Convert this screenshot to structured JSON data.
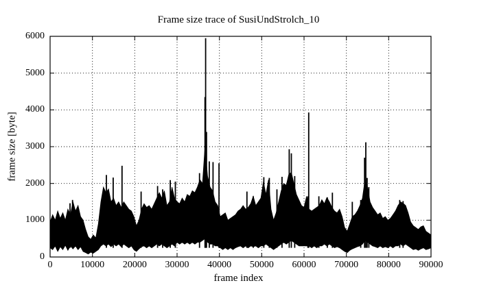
{
  "window": {
    "background": "#ffffff",
    "foreground": "#000000"
  },
  "chart_data": {
    "type": "line",
    "title": "Frame size trace of SusiUndStrolch_10",
    "xlabel": "frame index",
    "ylabel": "frame size [byte]",
    "series_name": "frame size trace",
    "line_color": "#000000",
    "grid": "dotted",
    "legend": "none",
    "xlim": [
      0,
      90000
    ],
    "ylim": [
      0,
      6000
    ],
    "xticks": [
      0,
      10000,
      20000,
      30000,
      40000,
      50000,
      60000,
      70000,
      80000,
      90000
    ],
    "yticks": [
      0,
      1000,
      2000,
      3000,
      4000,
      5000,
      6000
    ],
    "band_note": "dense noisy trace; sampled envelope [frame, min, max] in bytes",
    "band": [
      [
        0,
        250,
        950
      ],
      [
        600,
        200,
        1150
      ],
      [
        1200,
        300,
        1000
      ],
      [
        1800,
        150,
        1250
      ],
      [
        2400,
        280,
        1050
      ],
      [
        3000,
        200,
        1200
      ],
      [
        3600,
        320,
        1000
      ],
      [
        4200,
        180,
        1300
      ],
      [
        4800,
        300,
        1150
      ],
      [
        5400,
        220,
        1500
      ],
      [
        6000,
        300,
        1250
      ],
      [
        6600,
        200,
        1400
      ],
      [
        7200,
        280,
        1100
      ],
      [
        7800,
        150,
        1000
      ],
      [
        8400,
        120,
        750
      ],
      [
        9000,
        80,
        550
      ],
      [
        9600,
        130,
        480
      ],
      [
        10200,
        100,
        600
      ],
      [
        10800,
        150,
        520
      ],
      [
        11400,
        200,
        900
      ],
      [
        12000,
        300,
        1500
      ],
      [
        12600,
        350,
        1900
      ],
      [
        13200,
        300,
        1750
      ],
      [
        13800,
        350,
        1850
      ],
      [
        14400,
        280,
        1500
      ],
      [
        15000,
        350,
        1600
      ],
      [
        15600,
        300,
        1400
      ],
      [
        16200,
        350,
        1500
      ],
      [
        16800,
        280,
        1350
      ],
      [
        17400,
        350,
        1500
      ],
      [
        18000,
        300,
        1400
      ],
      [
        18600,
        250,
        1300
      ],
      [
        19200,
        300,
        1250
      ],
      [
        19800,
        200,
        1100
      ],
      [
        20400,
        150,
        850
      ],
      [
        21000,
        220,
        1000
      ],
      [
        21600,
        280,
        1300
      ],
      [
        22200,
        300,
        1450
      ],
      [
        22800,
        250,
        1350
      ],
      [
        23400,
        300,
        1400
      ],
      [
        24000,
        250,
        1300
      ],
      [
        24600,
        300,
        1450
      ],
      [
        25200,
        350,
        1600
      ],
      [
        25800,
        300,
        1750
      ],
      [
        26400,
        350,
        1600
      ],
      [
        27000,
        300,
        1800
      ],
      [
        27600,
        250,
        1400
      ],
      [
        28200,
        300,
        1500
      ],
      [
        28800,
        350,
        1900
      ],
      [
        29400,
        300,
        1600
      ],
      [
        30000,
        400,
        1500
      ],
      [
        30600,
        350,
        1450
      ],
      [
        31200,
        400,
        1600
      ],
      [
        31800,
        350,
        1500
      ],
      [
        32400,
        400,
        1700
      ],
      [
        33000,
        350,
        1650
      ],
      [
        33600,
        400,
        1800
      ],
      [
        34200,
        350,
        1750
      ],
      [
        34800,
        400,
        1900
      ],
      [
        35400,
        400,
        2100
      ],
      [
        36000,
        450,
        2000
      ],
      [
        36600,
        500,
        3000
      ],
      [
        37200,
        400,
        2200
      ],
      [
        37800,
        350,
        1900
      ],
      [
        38400,
        350,
        1800
      ],
      [
        39000,
        300,
        1500
      ],
      [
        39600,
        300,
        1400
      ],
      [
        40200,
        250,
        1100
      ],
      [
        40800,
        200,
        1150
      ],
      [
        41400,
        250,
        1200
      ],
      [
        42000,
        200,
        1000
      ],
      [
        42600,
        250,
        1050
      ],
      [
        43200,
        200,
        1100
      ],
      [
        43800,
        250,
        1150
      ],
      [
        44400,
        280,
        1250
      ],
      [
        45000,
        300,
        1300
      ],
      [
        45600,
        250,
        1400
      ],
      [
        46200,
        300,
        1300
      ],
      [
        46800,
        250,
        1350
      ],
      [
        47400,
        300,
        1450
      ],
      [
        48000,
        280,
        1650
      ],
      [
        48600,
        300,
        1400
      ],
      [
        49200,
        250,
        1500
      ],
      [
        49800,
        300,
        1600
      ],
      [
        50400,
        300,
        2050
      ],
      [
        51000,
        350,
        1700
      ],
      [
        51600,
        300,
        2100
      ],
      [
        52200,
        250,
        1300
      ],
      [
        52800,
        200,
        1000
      ],
      [
        53400,
        250,
        1200
      ],
      [
        54000,
        300,
        1500
      ],
      [
        54600,
        350,
        1800
      ],
      [
        55200,
        400,
        2000
      ],
      [
        55800,
        350,
        1950
      ],
      [
        56400,
        400,
        2250
      ],
      [
        57000,
        450,
        2300
      ],
      [
        57600,
        400,
        2000
      ],
      [
        58200,
        350,
        1700
      ],
      [
        58800,
        300,
        1550
      ],
      [
        59400,
        300,
        1400
      ],
      [
        60000,
        300,
        1350
      ],
      [
        60600,
        300,
        1650
      ],
      [
        61200,
        300,
        1300
      ],
      [
        61800,
        250,
        1250
      ],
      [
        62400,
        300,
        1300
      ],
      [
        63000,
        250,
        1350
      ],
      [
        63600,
        300,
        1400
      ],
      [
        64200,
        300,
        1560
      ],
      [
        64800,
        350,
        1450
      ],
      [
        65400,
        300,
        1620
      ],
      [
        66000,
        350,
        1500
      ],
      [
        66600,
        300,
        1350
      ],
      [
        67200,
        250,
        1250
      ],
      [
        67800,
        280,
        1200
      ],
      [
        68400,
        250,
        1300
      ],
      [
        69000,
        200,
        1100
      ],
      [
        69600,
        150,
        800
      ],
      [
        70200,
        120,
        700
      ],
      [
        70800,
        180,
        900
      ],
      [
        71400,
        220,
        1100
      ],
      [
        72000,
        250,
        1150
      ],
      [
        72600,
        280,
        1250
      ],
      [
        73200,
        300,
        1400
      ],
      [
        73800,
        350,
        1600
      ],
      [
        74400,
        450,
        2100
      ],
      [
        75000,
        400,
        1900
      ],
      [
        75600,
        350,
        1500
      ],
      [
        76200,
        300,
        1350
      ],
      [
        76800,
        280,
        1250
      ],
      [
        77400,
        250,
        1150
      ],
      [
        78000,
        300,
        1200
      ],
      [
        78600,
        250,
        1050
      ],
      [
        79200,
        280,
        1100
      ],
      [
        79800,
        250,
        1000
      ],
      [
        80400,
        300,
        1050
      ],
      [
        81000,
        250,
        1150
      ],
      [
        81600,
        300,
        1250
      ],
      [
        82200,
        300,
        1400
      ],
      [
        82800,
        350,
        1500
      ],
      [
        83400,
        300,
        1460
      ],
      [
        84000,
        350,
        1400
      ],
      [
        84600,
        300,
        1200
      ],
      [
        85200,
        250,
        950
      ],
      [
        85800,
        200,
        850
      ],
      [
        86400,
        220,
        800
      ],
      [
        87000,
        180,
        750
      ],
      [
        87600,
        220,
        820
      ],
      [
        88200,
        250,
        850
      ],
      [
        88800,
        200,
        700
      ],
      [
        89400,
        220,
        650
      ],
      [
        90000,
        250,
        600
      ]
    ],
    "peaks_note": "isolated tall spikes [frame, bytes]",
    "peaks": [
      [
        4700,
        1460
      ],
      [
        5300,
        1550
      ],
      [
        13300,
        2230
      ],
      [
        14900,
        2160
      ],
      [
        17000,
        2480
      ],
      [
        21500,
        1780
      ],
      [
        25400,
        1930
      ],
      [
        26600,
        1840
      ],
      [
        28400,
        2090
      ],
      [
        29600,
        2050
      ],
      [
        35300,
        2280
      ],
      [
        36600,
        4350
      ],
      [
        36750,
        5950
      ],
      [
        36950,
        3400
      ],
      [
        37600,
        2600
      ],
      [
        38500,
        2580
      ],
      [
        39900,
        2550
      ],
      [
        46500,
        1780
      ],
      [
        48000,
        1650
      ],
      [
        50500,
        2170
      ],
      [
        51800,
        2150
      ],
      [
        53600,
        1840
      ],
      [
        54800,
        2180
      ],
      [
        56500,
        2930
      ],
      [
        57000,
        2820
      ],
      [
        57800,
        2200
      ],
      [
        60900,
        1650
      ],
      [
        61100,
        3930
      ],
      [
        63500,
        1650
      ],
      [
        65500,
        1620
      ],
      [
        66700,
        1750
      ],
      [
        71400,
        1500
      ],
      [
        73400,
        1550
      ],
      [
        74300,
        2700
      ],
      [
        74600,
        3120
      ],
      [
        74900,
        2150
      ],
      [
        75300,
        1900
      ],
      [
        82600,
        1550
      ],
      [
        83400,
        1520
      ]
    ]
  }
}
